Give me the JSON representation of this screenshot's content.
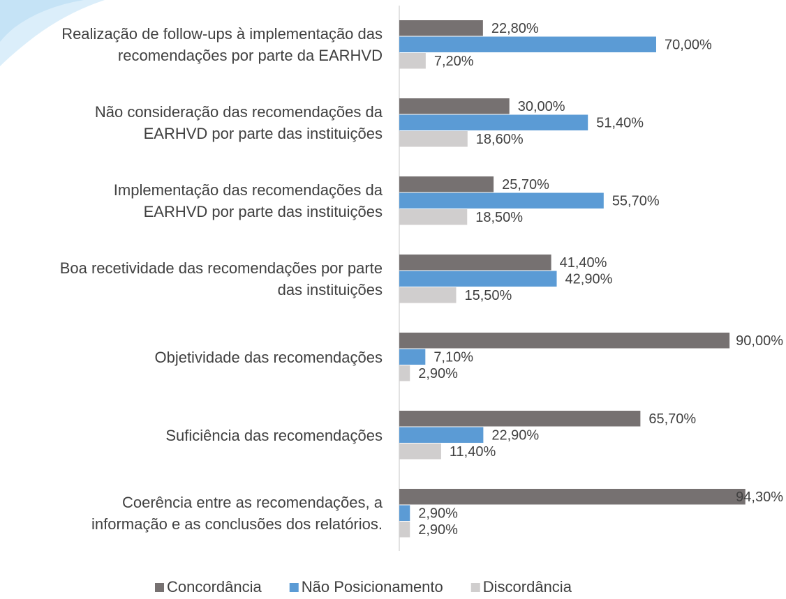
{
  "chart_data": {
    "type": "bar",
    "orientation": "horizontal",
    "categories": [
      "Realização de follow-ups à implementação das\nrecomendações por parte da EARHVD",
      "Não consideração  das recomendações da\nEARHVD por parte das instituições",
      "Implementação das recomendações da\nEARHVD por parte das instituições",
      "Boa recetividade das recomendações por parte\ndas instituições",
      "Objetividade das recomendações",
      "Suficiência das recomendações",
      "Coerência entre as recomendações,  a\ninformação e as conclusões dos relatórios."
    ],
    "series": [
      {
        "name": "Concordância",
        "color": "#767171",
        "values": [
          22.8,
          30,
          25.7,
          41.4,
          90,
          65.7,
          94.3
        ],
        "value_labels": [
          "22,80%",
          "30,00%",
          "25,70%",
          "41,40%",
          "90,00%",
          "65,70%",
          "94,30%"
        ]
      },
      {
        "name": "Não Posicionamento",
        "color": "#5b9bd5",
        "values": [
          70,
          51.4,
          55.7,
          42.9,
          7.1,
          22.9,
          2.9
        ],
        "value_labels": [
          "70,00%",
          "51,40%",
          "55,70%",
          "42,90%",
          "7,10%",
          "22,90%",
          "2,90%"
        ]
      },
      {
        "name": "Discordância",
        "color": "#d0cece",
        "values": [
          7.2,
          18.6,
          18.5,
          15.5,
          2.9,
          11.4,
          2.9
        ],
        "value_labels": [
          "7,20%",
          "18,60%",
          "18,50%",
          "15,50%",
          "2,90%",
          "11,40%",
          "2,90%"
        ]
      }
    ],
    "xlim": [
      0,
      100
    ],
    "legend": "bottom"
  }
}
